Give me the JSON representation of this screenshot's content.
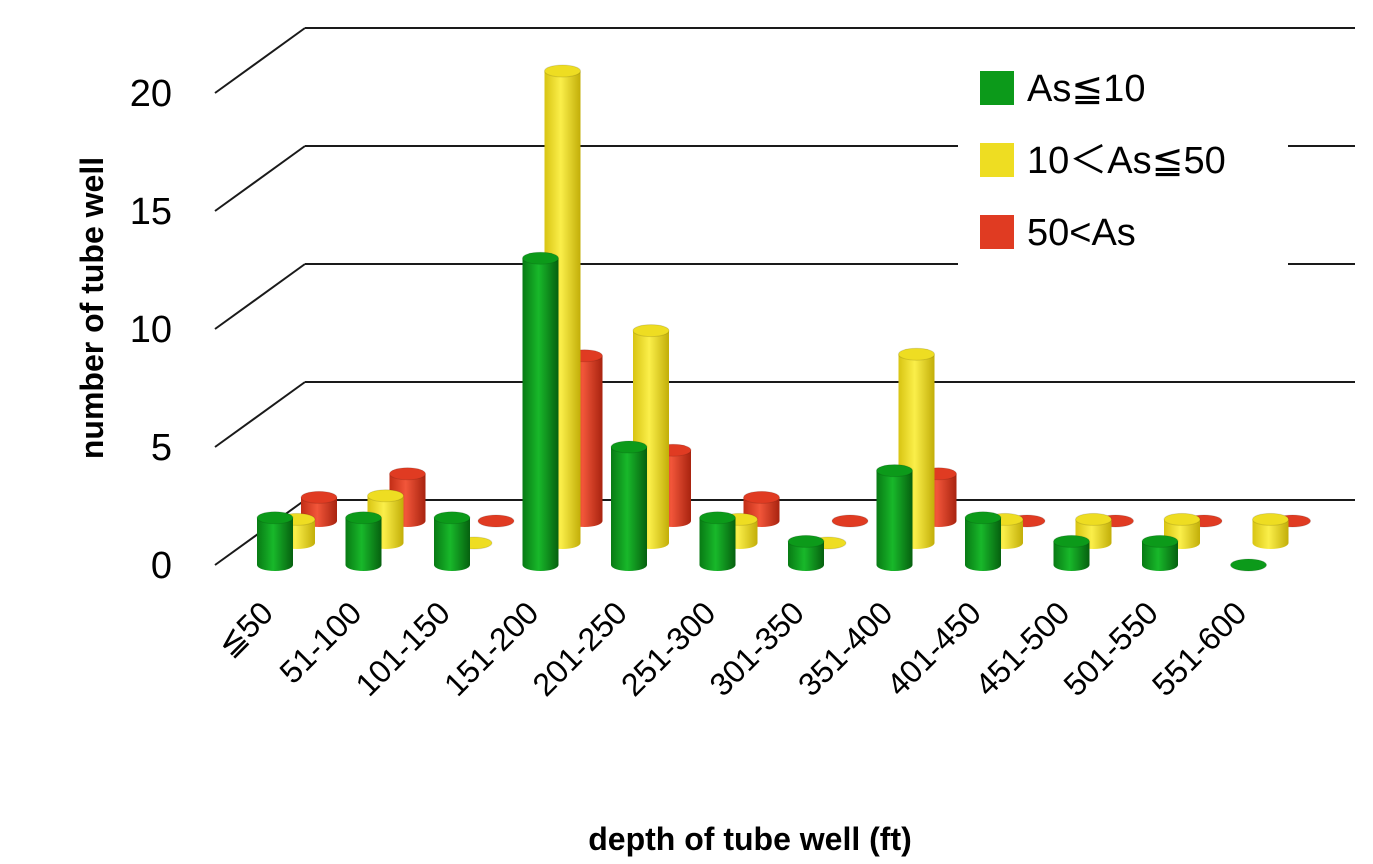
{
  "chart_data": {
    "type": "bar",
    "xlabel": "depth of tube well (ft)",
    "ylabel": "number of tube well",
    "categories": [
      "≦50",
      "51-100",
      "101-150",
      "151-200",
      "201-250",
      "251-300",
      "301-350",
      "351-400",
      "401-450",
      "451-500",
      "501-550",
      "551-600"
    ],
    "series": [
      {
        "name": "As≦10",
        "color": "#0c9a1a",
        "values": [
          2,
          2,
          2,
          13,
          5,
          2,
          1,
          4,
          2,
          1,
          1,
          0
        ]
      },
      {
        "name": "10＜As≦50",
        "color": "#eedd22",
        "values": [
          1,
          2,
          0,
          20,
          9,
          1,
          0,
          8,
          1,
          1,
          1,
          1
        ]
      },
      {
        "name": "50<As",
        "color": "#e03b22",
        "values": [
          1,
          2,
          0,
          7,
          3,
          1,
          0,
          2,
          0,
          0,
          0,
          0
        ]
      }
    ],
    "ylim": [
      0,
      20
    ],
    "yticks": [
      0,
      5,
      10,
      15,
      20
    ],
    "grid": true,
    "legend": "top-right",
    "projection": "3d-perspective"
  }
}
